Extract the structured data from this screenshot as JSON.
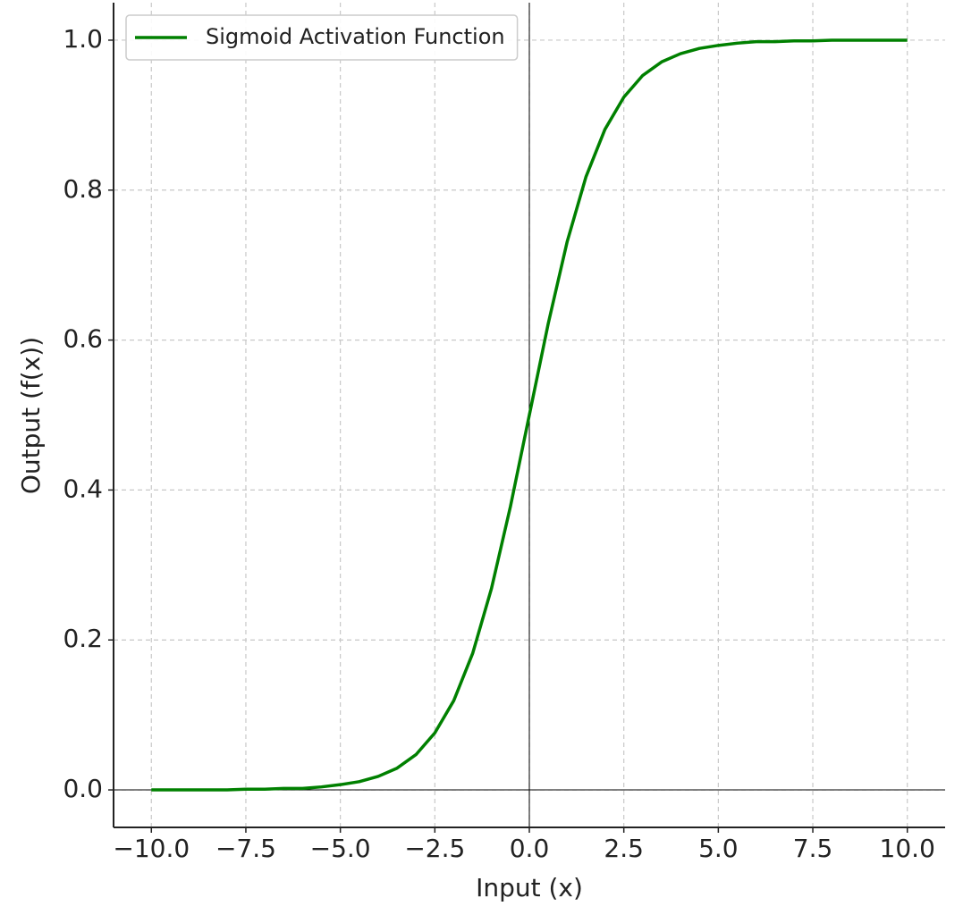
{
  "chart_data": {
    "type": "line",
    "x_label": "Input (x)",
    "y_label": "Output (f(x))",
    "x": [
      -10,
      -9.5,
      -9,
      -8.5,
      -8,
      -7.5,
      -7,
      -6.5,
      -6,
      -5.5,
      -5,
      -4.5,
      -4,
      -3.5,
      -3,
      -2.5,
      -2,
      -1.5,
      -1,
      -0.5,
      0,
      0.5,
      1,
      1.5,
      2,
      2.5,
      3,
      3.5,
      4,
      4.5,
      5,
      5.5,
      6,
      6.5,
      7,
      7.5,
      8,
      8.5,
      9,
      9.5,
      10
    ],
    "series": [
      {
        "name": "Sigmoid Activation Function",
        "color": "#008000",
        "values": [
          0.0,
          0.0,
          0.0,
          0.0,
          0.0,
          0.001,
          0.001,
          0.002,
          0.002,
          0.004,
          0.007,
          0.011,
          0.018,
          0.029,
          0.047,
          0.076,
          0.119,
          0.182,
          0.269,
          0.378,
          0.5,
          0.622,
          0.731,
          0.818,
          0.881,
          0.924,
          0.953,
          0.971,
          0.982,
          0.989,
          0.993,
          0.996,
          0.998,
          0.998,
          0.999,
          0.999,
          1.0,
          1.0,
          1.0,
          1.0,
          1.0
        ]
      }
    ],
    "xlim": [
      -11,
      11
    ],
    "ylim": [
      -0.05,
      1.05
    ],
    "xticks": [
      {
        "value": -10,
        "label": "−10.0"
      },
      {
        "value": -7.5,
        "label": "−7.5"
      },
      {
        "value": -5,
        "label": "−5.0"
      },
      {
        "value": -2.5,
        "label": "−2.5"
      },
      {
        "value": 0,
        "label": "0.0"
      },
      2.5,
      {
        "value": 5,
        "label": "5.0"
      },
      7.5,
      {
        "value": 10,
        "label": "10.0"
      }
    ],
    "yticks": [
      {
        "value": 0,
        "label": "0.0"
      },
      0.2,
      0.4,
      0.6,
      0.8,
      {
        "value": 1,
        "label": "1.0"
      }
    ],
    "grid": true,
    "legend": "upper left"
  }
}
